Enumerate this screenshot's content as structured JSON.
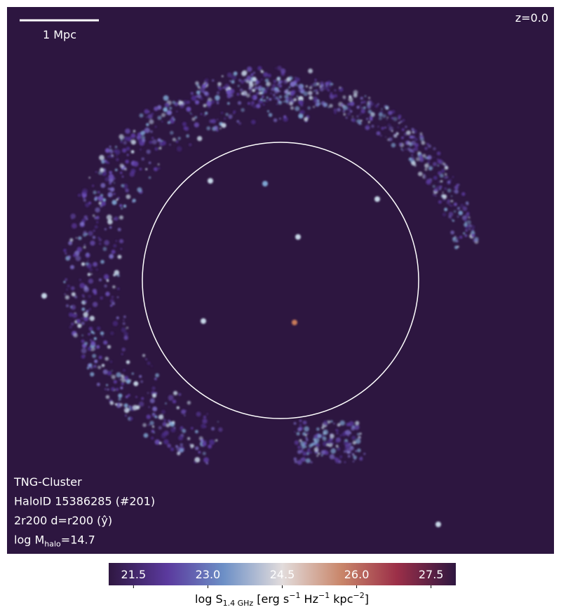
{
  "image": {
    "scale_bar": "1 Mpc",
    "redshift": "z=0.0",
    "info": [
      [
        "TNG-Cluster"
      ],
      [
        "HaloID 15386285 (#201)"
      ],
      [
        "2r200 d=r200 (ŷ)"
      ],
      [
        "log M",
        "halo",
        "=14.7"
      ]
    ]
  },
  "colorbar": {
    "clim": [
      21,
      28
    ],
    "ticks": [
      21.5,
      {
        "value": 23,
        "label": "23.0"
      },
      24.5,
      {
        "value": 26,
        "label": "26.0"
      },
      27.5
    ],
    "label": [
      "log S",
      "1.4 GHz",
      " [erg s",
      "−1",
      " Hz",
      "−1",
      " kpc",
      "−2",
      "]"
    ]
  }
}
